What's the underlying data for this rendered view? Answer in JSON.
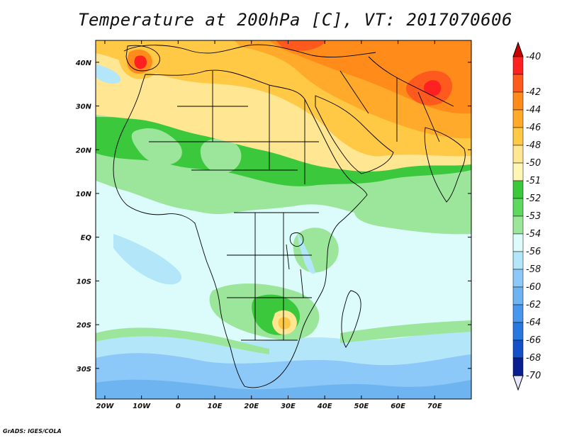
{
  "title": "Temperature at 200hPa [C], VT: 2017070606",
  "credit": "GrADS: IGES/COLA",
  "x_axis": {
    "labels": [
      "20W",
      "10W",
      "0",
      "10E",
      "20E",
      "30E",
      "40E",
      "50E",
      "60E",
      "70E"
    ],
    "lons": [
      -20,
      -10,
      0,
      10,
      20,
      30,
      40,
      50,
      60,
      70
    ]
  },
  "y_axis": {
    "labels": [
      "40N",
      "30N",
      "20N",
      "10N",
      "EQ",
      "10S",
      "20S",
      "30S"
    ],
    "lats": [
      40,
      30,
      20,
      10,
      0,
      -10,
      -20,
      -30
    ]
  },
  "map_extent": {
    "lon": [
      -22.5,
      80
    ],
    "lat": [
      -37,
      45
    ]
  },
  "colorbar": {
    "labels": [
      "-40",
      "-42",
      "-44",
      "-46",
      "-48",
      "-50",
      "-51",
      "-52",
      "-53",
      "-54",
      "-56",
      "-58",
      "-60",
      "-62",
      "-64",
      "-66",
      "-68",
      "-70"
    ],
    "colors": [
      "#ff2020",
      "#ff5a1e",
      "#ff8c1a",
      "#ffaa2a",
      "#ffc845",
      "#ffe692",
      "#fff6b4",
      "#3cc83c",
      "#5fd85f",
      "#9be69b",
      "#dcfcfc",
      "#b4e6fa",
      "#8cc8f8",
      "#6eb4f0",
      "#4896ee",
      "#2878e0",
      "#1450c8",
      "#0a1e90"
    ],
    "top_arrow_color": "#c80000",
    "bottom_arrow_color": "#e6e6ff"
  },
  "colors": {
    "background_field": "#dcfcfc",
    "border_line": "#000000"
  }
}
